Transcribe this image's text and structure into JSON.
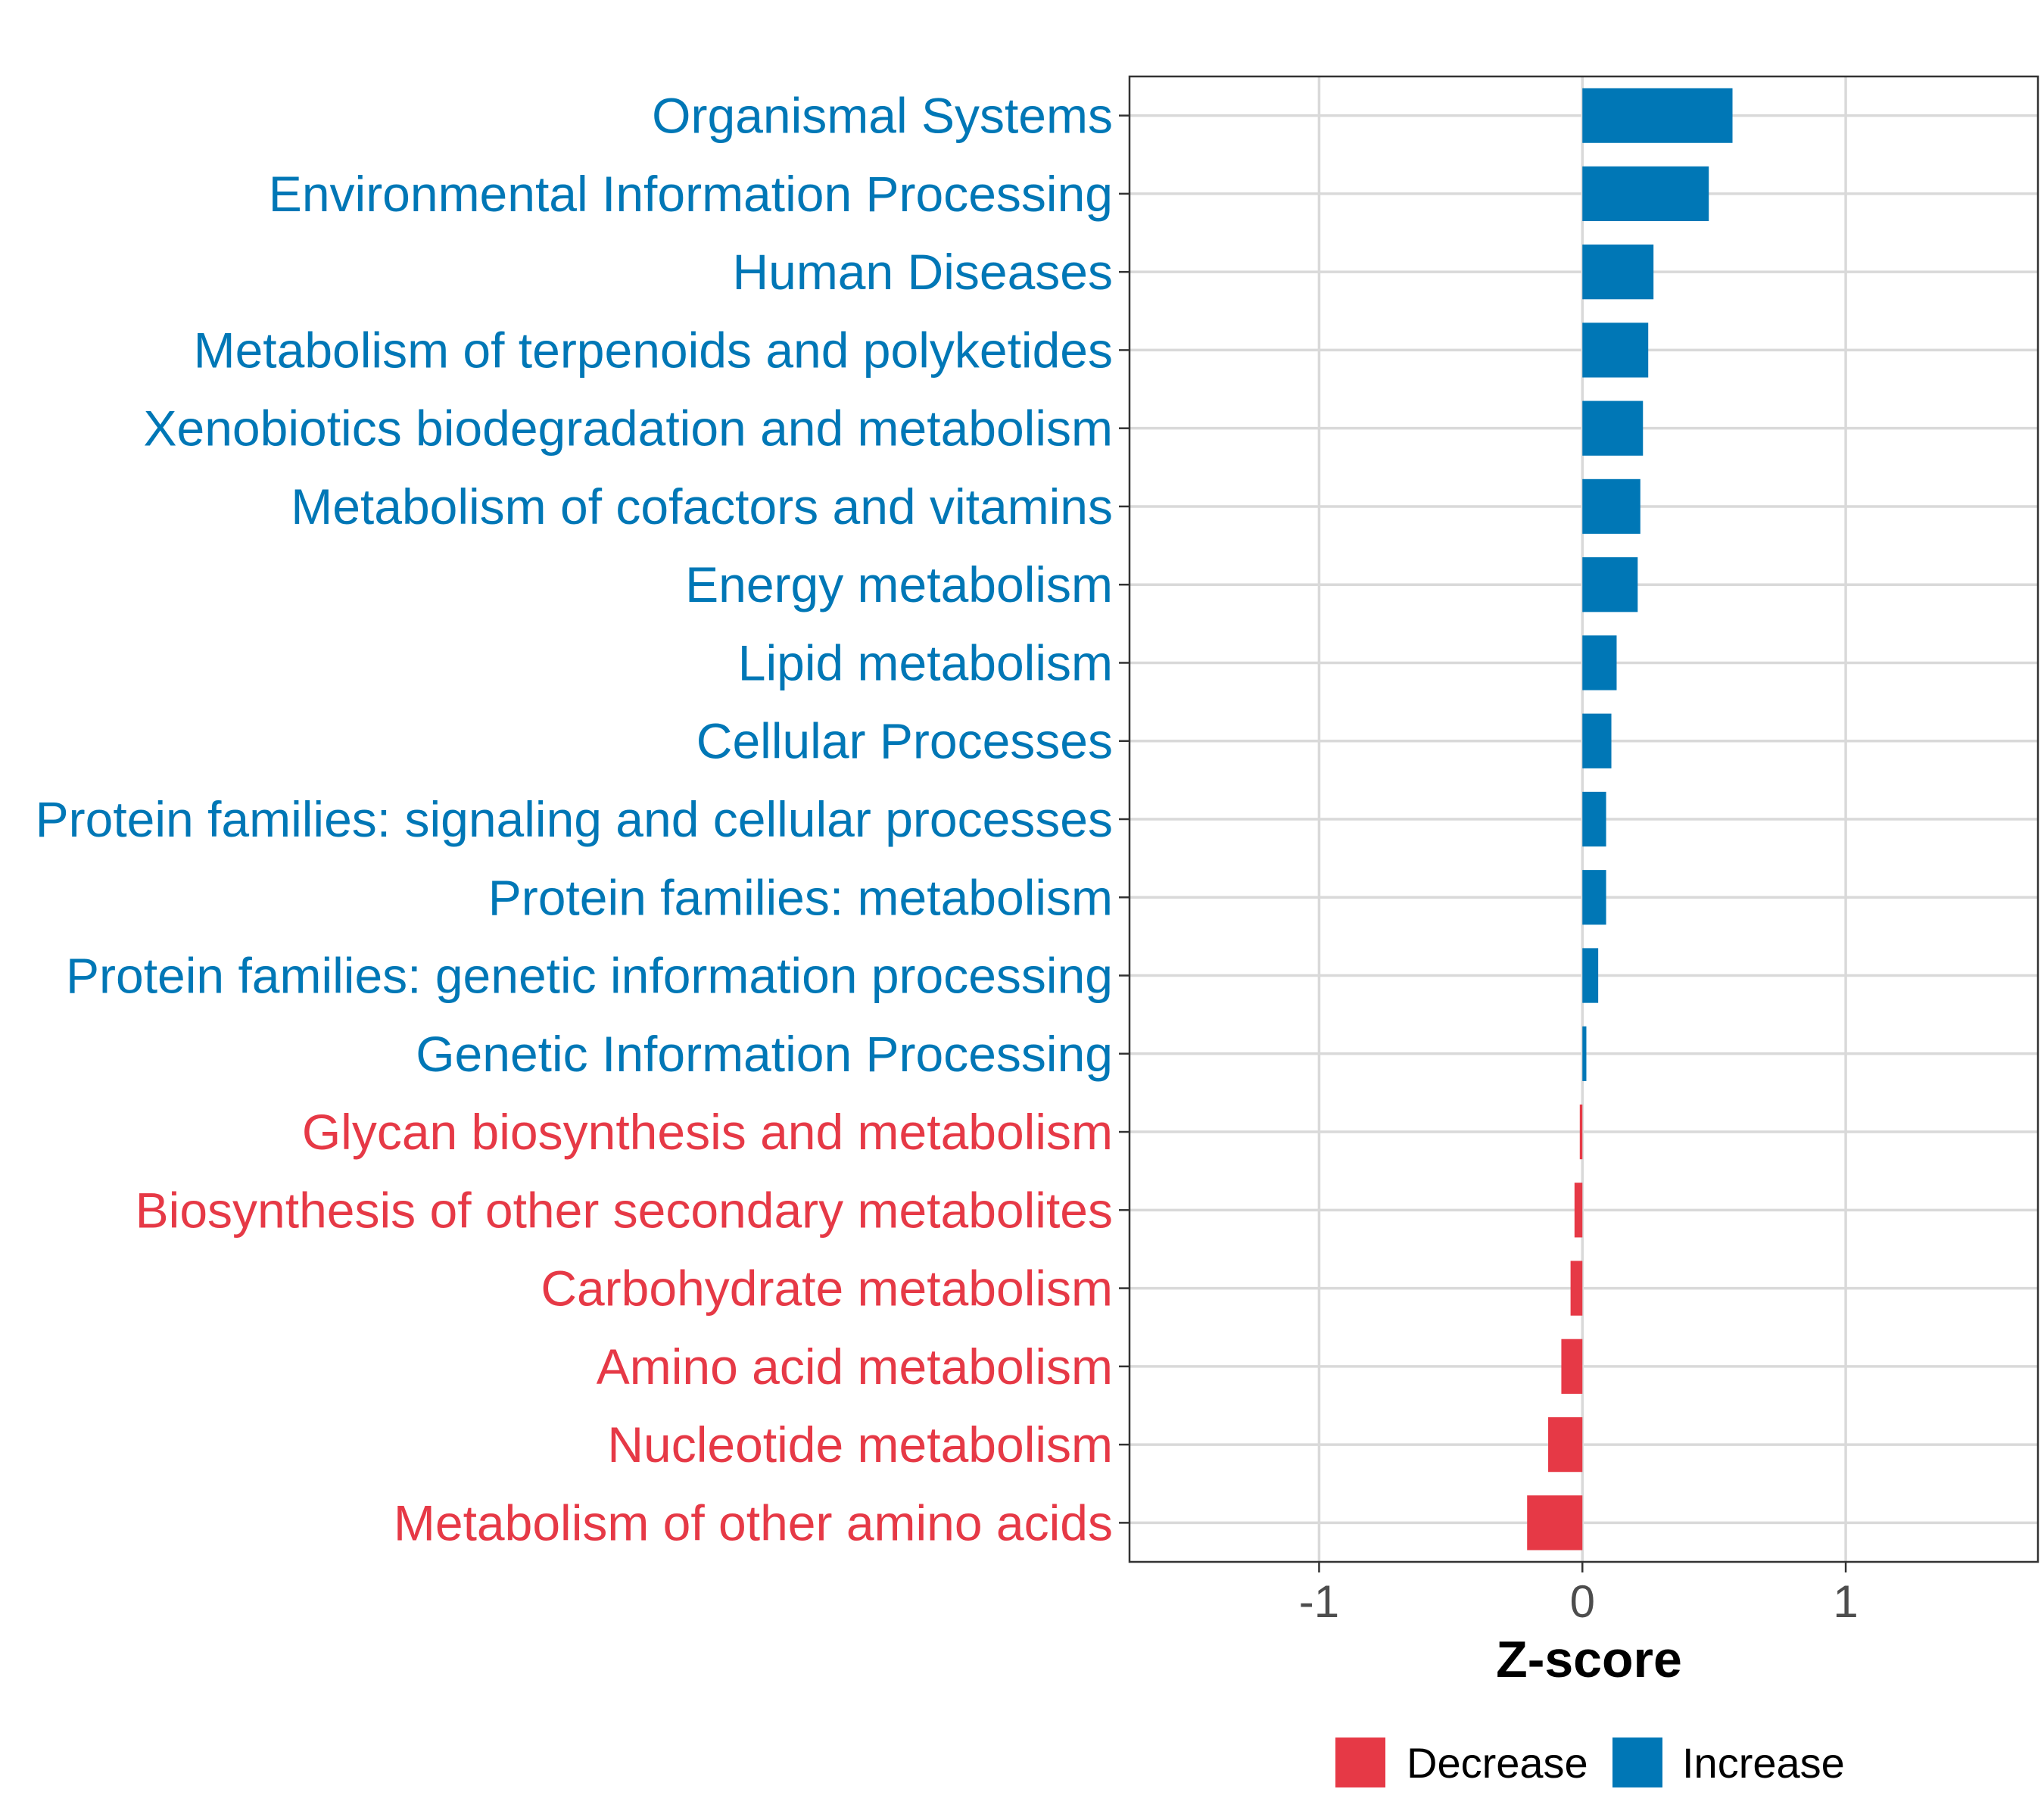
{
  "chart_data": {
    "type": "bar",
    "orientation": "horizontal",
    "title": "",
    "xlabel": "Z-score",
    "ylabel": "",
    "xlim": [
      -1.72,
      1.73
    ],
    "xticks": [
      {
        "value": -1,
        "label": "-1"
      },
      {
        "value": 0,
        "label": "0"
      },
      {
        "value": 1,
        "label": "1"
      }
    ],
    "grid": true,
    "legend_position": "bottom",
    "colors": {
      "Decrease": "#E63946",
      "Increase": "#0077B6"
    },
    "categories": [
      "Organismal Systems",
      "Environmental Information Processing",
      "Human Diseases",
      "Metabolism of terpenoids and polyketides",
      "Xenobiotics biodegradation and metabolism",
      "Metabolism of cofactors and vitamins",
      "Energy metabolism",
      "Lipid metabolism",
      "Cellular Processes",
      "Protein families: signaling and cellular processes",
      "Protein families: metabolism",
      "Protein families: genetic information processing",
      "Genetic Information Processing",
      "Glycan biosynthesis and metabolism",
      "Biosynthesis of other secondary metabolites",
      "Carbohydrate metabolism",
      "Amino acid metabolism",
      "Nucleotide metabolism",
      "Metabolism of other amino acids"
    ],
    "values": [
      0.57,
      0.48,
      0.27,
      0.25,
      0.23,
      0.22,
      0.21,
      0.13,
      0.11,
      0.09,
      0.09,
      0.06,
      0.015,
      -0.01,
      -0.03,
      -0.045,
      -0.08,
      -0.13,
      -0.21
    ],
    "groups": [
      "Increase",
      "Increase",
      "Increase",
      "Increase",
      "Increase",
      "Increase",
      "Increase",
      "Increase",
      "Increase",
      "Increase",
      "Increase",
      "Increase",
      "Increase",
      "Decrease",
      "Decrease",
      "Decrease",
      "Decrease",
      "Decrease",
      "Decrease"
    ],
    "legend": [
      "Decrease",
      "Increase"
    ]
  }
}
